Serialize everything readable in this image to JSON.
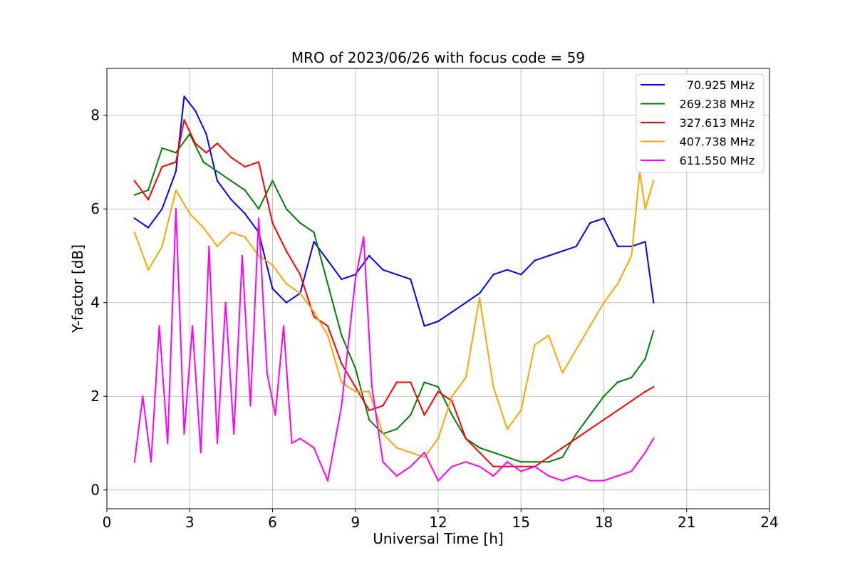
{
  "chart_data": {
    "type": "line",
    "title": "MRO of 2023/06/26 with focus code = 59",
    "xlabel": "Universal Time [h]",
    "ylabel": "Y-factor [dB]",
    "xlim": [
      0,
      24
    ],
    "ylim": [
      -0.4,
      9.0
    ],
    "xticks": [
      0,
      3,
      6,
      9,
      12,
      15,
      18,
      21,
      24
    ],
    "yticks": [
      0,
      2,
      4,
      6,
      8
    ],
    "grid": true,
    "legend_position": "top-right",
    "series": [
      {
        "name": "70.925 MHz",
        "color": "#0000ff",
        "x": [
          1.0,
          1.5,
          2.0,
          2.5,
          2.8,
          3.2,
          3.6,
          4.0,
          4.5,
          5.0,
          5.5,
          6.0,
          6.5,
          7.0,
          7.5,
          8.0,
          8.5,
          9.0,
          9.5,
          10.0,
          10.5,
          11.0,
          11.5,
          12.0,
          12.5,
          13.0,
          13.5,
          14.0,
          14.5,
          15.0,
          15.5,
          16.0,
          16.5,
          17.0,
          17.5,
          18.0,
          18.5,
          19.0,
          19.5,
          19.8
        ],
        "y": [
          5.8,
          5.6,
          6.0,
          6.8,
          8.4,
          8.1,
          7.6,
          6.6,
          6.2,
          5.9,
          5.5,
          4.3,
          4.0,
          4.2,
          5.3,
          4.9,
          4.5,
          4.6,
          5.0,
          4.7,
          4.6,
          4.5,
          3.5,
          3.6,
          3.8,
          4.0,
          4.2,
          4.6,
          4.7,
          4.6,
          4.9,
          5.0,
          5.1,
          5.2,
          5.7,
          5.8,
          5.2,
          5.2,
          5.3,
          4.0
        ]
      },
      {
        "name": "269.238 MHz",
        "color": "#008000",
        "x": [
          1.0,
          1.5,
          2.0,
          2.5,
          3.0,
          3.5,
          4.0,
          4.5,
          5.0,
          5.5,
          6.0,
          6.5,
          7.0,
          7.5,
          8.0,
          8.5,
          9.0,
          9.5,
          10.0,
          10.5,
          11.0,
          11.5,
          12.0,
          12.5,
          13.0,
          13.5,
          14.0,
          14.5,
          15.0,
          15.5,
          16.0,
          16.5,
          17.0,
          17.5,
          18.0,
          18.5,
          19.0,
          19.5,
          19.8
        ],
        "y": [
          6.3,
          6.4,
          7.3,
          7.2,
          7.6,
          7.0,
          6.8,
          6.6,
          6.4,
          6.0,
          6.6,
          6.0,
          5.7,
          5.5,
          4.4,
          3.3,
          2.6,
          1.5,
          1.2,
          1.3,
          1.6,
          2.3,
          2.2,
          1.6,
          1.1,
          0.9,
          0.8,
          0.7,
          0.6,
          0.6,
          0.6,
          0.7,
          1.2,
          1.6,
          2.0,
          2.3,
          2.4,
          2.8,
          3.4
        ]
      },
      {
        "name": "327.613 MHz",
        "color": "#ff0000",
        "x": [
          1.0,
          1.5,
          2.0,
          2.5,
          2.8,
          3.2,
          3.6,
          4.0,
          4.5,
          5.0,
          5.5,
          6.0,
          6.5,
          7.0,
          7.5,
          8.0,
          8.5,
          9.0,
          9.5,
          10.0,
          10.5,
          11.0,
          11.5,
          12.0,
          12.5,
          13.0,
          13.5,
          14.0,
          14.5,
          15.0,
          15.5,
          16.0,
          16.5,
          17.0,
          17.5,
          18.0,
          18.5,
          19.0,
          19.5,
          19.8
        ],
        "y": [
          6.6,
          6.2,
          6.9,
          7.0,
          7.9,
          7.4,
          7.2,
          7.4,
          7.1,
          6.9,
          7.0,
          5.7,
          5.1,
          4.6,
          3.7,
          3.5,
          2.7,
          2.2,
          1.7,
          1.8,
          2.3,
          2.3,
          1.6,
          2.1,
          1.9,
          1.1,
          0.8,
          0.5,
          0.5,
          0.5,
          0.5,
          0.7,
          0.9,
          1.1,
          1.3,
          1.5,
          1.7,
          1.9,
          2.1,
          2.2
        ]
      },
      {
        "name": "407.738 MHz",
        "color": "#ffa500",
        "x": [
          1.0,
          1.5,
          2.0,
          2.5,
          3.0,
          3.5,
          4.0,
          4.5,
          5.0,
          5.5,
          6.0,
          6.5,
          7.0,
          7.5,
          8.0,
          8.5,
          9.0,
          9.5,
          10.0,
          10.5,
          11.0,
          11.5,
          12.0,
          12.5,
          13.0,
          13.5,
          14.0,
          14.5,
          15.0,
          15.5,
          16.0,
          16.5,
          17.0,
          17.5,
          18.0,
          18.5,
          19.0,
          19.3,
          19.5,
          19.8
        ],
        "y": [
          5.5,
          4.7,
          5.2,
          6.4,
          5.9,
          5.6,
          5.2,
          5.5,
          5.4,
          5.0,
          4.8,
          4.4,
          4.2,
          3.8,
          3.3,
          2.3,
          2.1,
          2.1,
          1.2,
          0.9,
          0.8,
          0.7,
          1.1,
          2.0,
          2.4,
          4.1,
          2.2,
          1.3,
          1.7,
          3.1,
          3.3,
          2.5,
          3.0,
          3.5,
          4.0,
          4.4,
          5.0,
          6.8,
          6.0,
          6.6
        ]
      },
      {
        "name": "611.550 MHz",
        "color": "#ff00ff",
        "x": [
          1.0,
          1.3,
          1.6,
          1.9,
          2.2,
          2.5,
          2.8,
          3.1,
          3.4,
          3.7,
          4.0,
          4.3,
          4.6,
          4.9,
          5.2,
          5.5,
          5.8,
          6.1,
          6.4,
          6.7,
          7.0,
          7.5,
          8.0,
          8.5,
          9.0,
          9.3,
          9.6,
          10.0,
          10.5,
          11.0,
          11.5,
          12.0,
          12.5,
          13.0,
          13.5,
          14.0,
          14.5,
          15.0,
          15.5,
          16.0,
          16.5,
          17.0,
          17.5,
          18.0,
          18.5,
          19.0,
          19.5,
          19.8
        ],
        "y": [
          0.6,
          2.0,
          0.6,
          3.5,
          1.0,
          6.0,
          1.2,
          3.5,
          0.8,
          5.2,
          1.0,
          4.0,
          1.2,
          5.0,
          1.8,
          5.8,
          2.5,
          1.6,
          3.5,
          1.0,
          1.1,
          0.9,
          0.2,
          1.8,
          4.5,
          5.4,
          2.2,
          0.6,
          0.3,
          0.5,
          0.8,
          0.2,
          0.5,
          0.6,
          0.5,
          0.3,
          0.6,
          0.4,
          0.5,
          0.3,
          0.2,
          0.3,
          0.2,
          0.2,
          0.3,
          0.4,
          0.8,
          1.1
        ]
      }
    ]
  }
}
